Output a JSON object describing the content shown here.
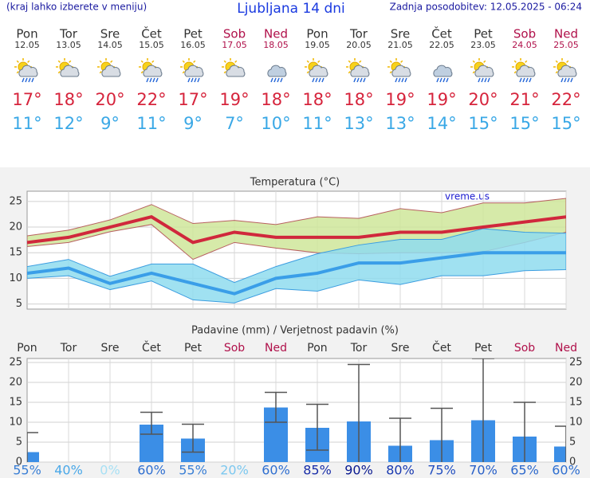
{
  "header": {
    "left": "(kraj lahko izberete v meniju)",
    "title": "Ljubljana 14 dni",
    "right": "Zadnja posodobitev: 12.05.2025 - 06:24"
  },
  "days": [
    {
      "name": "Pon",
      "date": "12.05",
      "color": "#333333"
    },
    {
      "name": "Tor",
      "date": "13.05",
      "color": "#333333"
    },
    {
      "name": "Sre",
      "date": "14.05",
      "color": "#333333"
    },
    {
      "name": "Čet",
      "date": "15.05",
      "color": "#333333"
    },
    {
      "name": "Pet",
      "date": "16.05",
      "color": "#333333"
    },
    {
      "name": "Sob",
      "date": "17.05",
      "color": "#b0104a"
    },
    {
      "name": "Ned",
      "date": "18.05",
      "color": "#b0104a"
    },
    {
      "name": "Pon",
      "date": "19.05",
      "color": "#333333"
    },
    {
      "name": "Tor",
      "date": "20.05",
      "color": "#333333"
    },
    {
      "name": "Sre",
      "date": "21.05",
      "color": "#333333"
    },
    {
      "name": "Čet",
      "date": "22.05",
      "color": "#333333"
    },
    {
      "name": "Pet",
      "date": "23.05",
      "color": "#333333"
    },
    {
      "name": "Sob",
      "date": "24.05",
      "color": "#b0104a"
    },
    {
      "name": "Ned",
      "date": "25.05",
      "color": "#b0104a"
    }
  ],
  "forecast": {
    "high": {
      "color": "#d6243c",
      "values": [
        17,
        18,
        20,
        22,
        17,
        19,
        18,
        18,
        18,
        19,
        19,
        20,
        21,
        22
      ],
      "value_labels": [
        "17°",
        "18°",
        "20°",
        "22°",
        "17°",
        "19°",
        "18°",
        "18°",
        "18°",
        "19°",
        "19°",
        "20°",
        "21°",
        "22°"
      ]
    },
    "low": {
      "color": "#3aa8e6",
      "values": [
        11,
        12,
        9,
        11,
        9,
        7,
        10,
        11,
        13,
        13,
        14,
        15,
        15,
        15
      ],
      "value_labels": [
        "11°",
        "12°",
        "9°",
        "11°",
        "9°",
        "7°",
        "10°",
        "11°",
        "13°",
        "13°",
        "14°",
        "15°",
        "15°",
        "15°"
      ]
    }
  },
  "chart_data": [
    {
      "type": "line",
      "title": "Temperatura (°C)",
      "annotation": "vreme.us",
      "ylim": [
        4,
        27
      ],
      "yticks": [
        5,
        10,
        15,
        20,
        25
      ],
      "grid": true,
      "bands": [
        {
          "color": "#cfe69a",
          "stroke": "#b86060",
          "upper": [
            18.3,
            19.4,
            21.4,
            24.4,
            20.7,
            21.3,
            20.5,
            22,
            21.7,
            23.6,
            22.8,
            24.7,
            24.7,
            25.6
          ],
          "lower": [
            16.2,
            17,
            19.1,
            20.5,
            13.7,
            17,
            15.9,
            15,
            14.8,
            15,
            15,
            15.2,
            17,
            19
          ]
        },
        {
          "color": "#8fdcee",
          "stroke": "#3b9de0",
          "upper": [
            12.3,
            13.7,
            10.4,
            12.8,
            12.8,
            9.2,
            12.3,
            14.8,
            16.5,
            17.6,
            17.6,
            19.7,
            19,
            18.8
          ],
          "lower": [
            10,
            10.5,
            7.8,
            9.5,
            5.8,
            5.2,
            8,
            7.5,
            9.7,
            8.8,
            10.5,
            10.5,
            11.5,
            11.7
          ]
        }
      ],
      "series": [
        {
          "color": "#d0283c",
          "values": [
            17,
            18,
            20,
            22,
            17,
            19,
            18,
            18,
            18,
            19,
            19,
            20,
            21,
            22
          ]
        },
        {
          "color": "#3a9ee8",
          "values": [
            11,
            12,
            9,
            11,
            9,
            7,
            10,
            11,
            13,
            13,
            14,
            15,
            15,
            15
          ]
        }
      ]
    },
    {
      "type": "bar",
      "title": "Padavine (mm) / Verjetnost padavin (%)",
      "categories": [
        "Pon",
        "Tor",
        "Sre",
        "Čet",
        "Pet",
        "Sob",
        "Ned",
        "Pon",
        "Tor",
        "Sre",
        "Čet",
        "Pet",
        "Sob",
        "Ned"
      ],
      "category_colors": [
        "#333333",
        "#333333",
        "#333333",
        "#333333",
        "#333333",
        "#b0104a",
        "#b0104a",
        "#333333",
        "#333333",
        "#333333",
        "#333333",
        "#333333",
        "#b0104a",
        "#b0104a"
      ],
      "color": "#3b8ee6",
      "values": [
        2.5,
        0,
        0,
        9.4,
        5.9,
        0,
        13.7,
        8.6,
        10.2,
        4.1,
        5.5,
        10.5,
        6.4,
        3.9
      ],
      "err_high": [
        7.4,
        0,
        0,
        12.5,
        9.5,
        0,
        17.5,
        14.5,
        24.5,
        11,
        13.5,
        26,
        15,
        9
      ],
      "err_low": [
        0,
        0,
        0,
        7,
        2.5,
        0,
        10,
        3,
        0,
        0,
        0,
        0,
        0,
        0
      ],
      "ylim": [
        0,
        26
      ],
      "yticks": [
        0,
        5,
        10,
        15,
        20,
        25
      ],
      "y2lim": [
        0,
        26
      ],
      "y2ticks": [
        0,
        5,
        10,
        15,
        20,
        25
      ],
      "grid": true,
      "probability": {
        "values": [
          55,
          40,
          0,
          60,
          55,
          20,
          60,
          85,
          90,
          80,
          75,
          70,
          65,
          60
        ],
        "value_labels": [
          "55%",
          "40%",
          "0%",
          "60%",
          "55%",
          "20%",
          "60%",
          "85%",
          "90%",
          "80%",
          "75%",
          "70%",
          "65%",
          "60%"
        ],
        "colors": [
          "#3a7fd5",
          "#4aa8e8",
          "#a8e0f4",
          "#2f6fd0",
          "#3a7fd5",
          "#7cc8f0",
          "#2f6fd0",
          "#1a2fa8",
          "#0a1a90",
          "#1a3ab0",
          "#2450c0",
          "#2860c8",
          "#2c68cc",
          "#2f6fd0"
        ]
      }
    }
  ]
}
